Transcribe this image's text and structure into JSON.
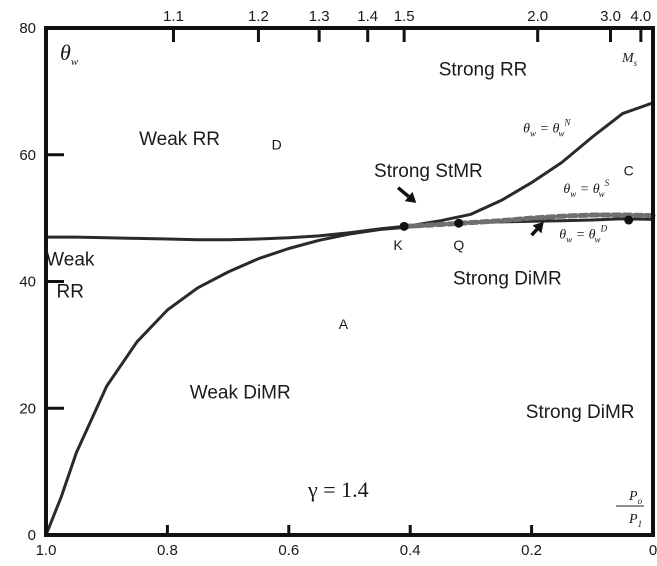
{
  "chart_data": {
    "type": "line",
    "title": "",
    "x": {
      "label_numerator": "P",
      "label_numerator_sub": "o",
      "label_denominator": "P",
      "label_denominator_sub": "1",
      "range": [
        1.0,
        0.0
      ],
      "reversed": true,
      "ticks": [
        {
          "value": 1.0,
          "label": "1.0"
        },
        {
          "value": 0.8,
          "label": "0.8"
        },
        {
          "value": 0.6,
          "label": "0.6"
        },
        {
          "value": 0.4,
          "label": "0.4"
        },
        {
          "value": 0.2,
          "label": "0.2"
        },
        {
          "value": 0.0,
          "label": "0"
        }
      ]
    },
    "x_top": {
      "label": "M",
      "label_sub": "s",
      "ticks": [
        {
          "at": 0.79,
          "label": "1.1"
        },
        {
          "at": 0.65,
          "label": "1.2"
        },
        {
          "at": 0.55,
          "label": "1.3"
        },
        {
          "at": 0.47,
          "label": "1.4"
        },
        {
          "at": 0.41,
          "label": "1.5"
        },
        {
          "at": 0.19,
          "label": "2.0"
        },
        {
          "at": 0.07,
          "label": "3.0"
        },
        {
          "at": 0.02,
          "label": "4.0"
        }
      ]
    },
    "y": {
      "label": "θ",
      "label_sub": "w",
      "range": [
        0,
        80
      ],
      "ticks": [
        {
          "value": 0,
          "label": "0"
        },
        {
          "value": 20,
          "label": "20"
        },
        {
          "value": 40,
          "label": "40"
        },
        {
          "value": 60,
          "label": "60"
        },
        {
          "value": 80,
          "label": "80"
        }
      ]
    },
    "grid": false,
    "annotation": "γ = 1.4",
    "series": [
      {
        "id": "theta-N",
        "label": "θw = θwN",
        "style": "solid",
        "points": [
          [
            0.0,
            68.2
          ],
          [
            0.05,
            66.5
          ],
          [
            0.1,
            62.8
          ],
          [
            0.15,
            58.8
          ],
          [
            0.2,
            55.6
          ],
          [
            0.25,
            52.8
          ],
          [
            0.3,
            50.6
          ],
          [
            0.35,
            49.6
          ],
          [
            0.4,
            48.8
          ],
          [
            0.45,
            48.3
          ],
          [
            0.5,
            47.7
          ],
          [
            0.55,
            47.2
          ],
          [
            0.6,
            46.9
          ],
          [
            0.65,
            46.7
          ],
          [
            0.7,
            46.6
          ],
          [
            0.75,
            46.6
          ],
          [
            0.8,
            46.7
          ],
          [
            0.85,
            46.8
          ],
          [
            0.9,
            46.9
          ],
          [
            0.95,
            47.0
          ],
          [
            1.0,
            47.0
          ]
        ]
      },
      {
        "id": "theta-S",
        "label": "θw = θwS",
        "style": "solid",
        "points": [
          [
            0.0,
            49.8
          ],
          [
            0.05,
            49.9
          ],
          [
            0.1,
            49.7
          ],
          [
            0.15,
            49.6
          ],
          [
            0.2,
            49.5
          ],
          [
            0.25,
            49.4
          ],
          [
            0.3,
            49.3
          ],
          [
            0.35,
            49.0
          ],
          [
            0.4,
            48.6
          ],
          [
            0.45,
            48.2
          ],
          [
            0.5,
            47.5
          ],
          [
            0.55,
            46.5
          ],
          [
            0.6,
            45.2
          ],
          [
            0.65,
            43.6
          ],
          [
            0.7,
            41.5
          ],
          [
            0.75,
            39.0
          ],
          [
            0.8,
            35.5
          ],
          [
            0.85,
            30.5
          ],
          [
            0.9,
            23.5
          ],
          [
            0.95,
            13.0
          ],
          [
            0.975,
            6.0
          ],
          [
            1.0,
            0.0
          ]
        ]
      },
      {
        "id": "theta-D",
        "label": "θw = θwD",
        "style": "dashed",
        "points": [
          [
            0.0,
            50.4
          ],
          [
            0.05,
            50.5
          ],
          [
            0.1,
            50.5
          ],
          [
            0.15,
            50.3
          ],
          [
            0.2,
            50.0
          ],
          [
            0.25,
            49.6
          ],
          [
            0.3,
            49.3
          ],
          [
            0.35,
            49.0
          ],
          [
            0.41,
            48.7
          ]
        ]
      }
    ],
    "markers": [
      {
        "name": "K",
        "x": 0.41,
        "y": 48.7
      },
      {
        "name": "Q",
        "x": 0.32,
        "y": 49.2
      },
      {
        "name": "C",
        "x": 0.04,
        "y": 49.7
      }
    ],
    "region_labels": [
      {
        "text": "Strong RR",
        "x": 0.28,
        "y": 72.5
      },
      {
        "text": "Weak RR",
        "x": 0.78,
        "y": 61.5
      },
      {
        "text": "Strong StMR",
        "x": 0.37,
        "y": 56.5
      },
      {
        "text": "Weak",
        "x": 0.96,
        "y": 42.5
      },
      {
        "text": "RR",
        "x": 0.96,
        "y": 37.5
      },
      {
        "text": "Strong DiMR",
        "x": 0.24,
        "y": 39.5
      },
      {
        "text": "Weak DiMR",
        "x": 0.68,
        "y": 21.5
      },
      {
        "text": "Strong DiMR",
        "x": 0.12,
        "y": 18.5
      }
    ],
    "point_labels": [
      {
        "text": "D",
        "x": 0.62,
        "y": 60.8
      },
      {
        "text": "C",
        "x": 0.04,
        "y": 56.7
      },
      {
        "text": "A",
        "x": 0.51,
        "y": 32.5
      },
      {
        "text": "K",
        "x": 0.42,
        "y": 45.0
      },
      {
        "text": "Q",
        "x": 0.32,
        "y": 45.0
      }
    ],
    "curve_labels": [
      {
        "lhs": "θ",
        "lhs_sub": "w",
        "rhs": "θ",
        "rhs_sub": "w",
        "rhs_sup": "N",
        "x": 0.175,
        "y": 63.5
      },
      {
        "lhs": "θ",
        "lhs_sub": "w",
        "rhs": "θ",
        "rhs_sub": "w",
        "rhs_sup": "S",
        "x": 0.11,
        "y": 54.0
      },
      {
        "lhs": "θ",
        "lhs_sub": "w",
        "rhs": "θ",
        "rhs_sub": "w",
        "rhs_sup": "D",
        "x": 0.115,
        "y": 46.8
      }
    ],
    "arrows": [
      {
        "from": [
          0.42,
          54.8
        ],
        "to": [
          0.39,
          52.4
        ]
      },
      {
        "from": [
          0.2,
          47.3
        ],
        "to": [
          0.18,
          49.4
        ]
      }
    ]
  }
}
